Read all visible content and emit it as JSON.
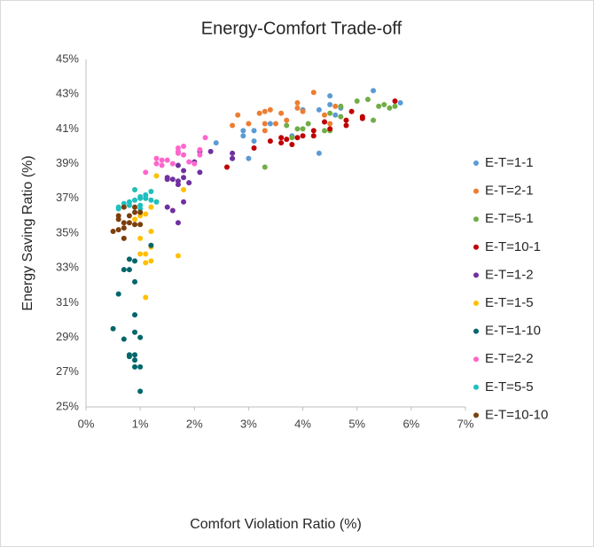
{
  "chart_data": {
    "type": "scatter",
    "title": "Energy-Comfort Trade-off",
    "x_label": "Comfort Violation Ratio (%)",
    "y_label": "Energy Saving Ratio (%)",
    "xlim": [
      0,
      7
    ],
    "xticks": [
      {
        "value": 0,
        "label": "0%"
      },
      {
        "value": 1,
        "label": "1%"
      },
      {
        "value": 2,
        "label": "2%"
      },
      {
        "value": 3,
        "label": "3%"
      },
      {
        "value": 4,
        "label": "4%"
      },
      {
        "value": 5,
        "label": "5%"
      },
      {
        "value": 6,
        "label": "6%"
      },
      {
        "value": 7,
        "label": "7%"
      }
    ],
    "ylim": [
      25,
      45
    ],
    "yticks": [
      {
        "value": 25,
        "label": "25%"
      },
      {
        "value": 27,
        "label": "27%"
      },
      {
        "value": 29,
        "label": "29%"
      },
      {
        "value": 31,
        "label": "31%"
      },
      {
        "value": 33,
        "label": "33%"
      },
      {
        "value": 35,
        "label": "35%"
      },
      {
        "value": 37,
        "label": "37%"
      },
      {
        "value": 39,
        "label": "39%"
      },
      {
        "value": 41,
        "label": "41%"
      },
      {
        "value": 43,
        "label": "43%"
      },
      {
        "value": 45,
        "label": "45%"
      }
    ],
    "grid": false,
    "legend": "right",
    "series": [
      {
        "name": "E-T=1-1",
        "color": "#5b9bd5",
        "x": [
          4.5,
          5.3,
          5.8,
          4.3,
          4.0,
          4.4,
          3.1,
          2.9,
          2.4,
          2.7,
          3.0,
          4.3,
          4.6,
          3.4,
          3.8,
          3.1,
          4.5,
          4.7,
          2.9
        ],
        "values": [
          42.9,
          43.2,
          42.5,
          42.1,
          42.1,
          41.4,
          40.9,
          40.9,
          40.2,
          39.3,
          39.3,
          39.6,
          41.8,
          41.3,
          40.6,
          40.3,
          42.4,
          42.2,
          40.6
        ]
      },
      {
        "name": "E-T=2-1",
        "color": "#ed7d31",
        "x": [
          4.2,
          3.9,
          3.3,
          3.4,
          2.8,
          2.7,
          3.0,
          3.3,
          3.6,
          3.3,
          3.5,
          4.0,
          4.4,
          4.6,
          3.9,
          3.2,
          3.7,
          4.5
        ],
        "values": [
          43.1,
          42.5,
          42.0,
          42.1,
          41.8,
          41.2,
          41.3,
          41.3,
          41.9,
          40.9,
          41.3,
          42.0,
          41.8,
          42.3,
          42.2,
          41.9,
          41.5,
          41.3
        ]
      },
      {
        "name": "E-T=5-1",
        "color": "#70ad47",
        "x": [
          5.2,
          5.4,
          5.7,
          5.6,
          5.0,
          4.7,
          4.5,
          4.1,
          3.9,
          3.8,
          4.4,
          4.5,
          5.3,
          3.3,
          4.0,
          3.7,
          4.7,
          5.5
        ],
        "values": [
          42.7,
          42.3,
          42.3,
          42.2,
          42.6,
          42.3,
          41.9,
          41.3,
          41.0,
          40.5,
          40.9,
          40.9,
          41.5,
          38.8,
          41.0,
          41.2,
          41.7,
          42.4
        ]
      },
      {
        "name": "E-T=10-1",
        "color": "#c00000",
        "x": [
          5.7,
          4.9,
          4.8,
          5.1,
          4.4,
          4.2,
          4.2,
          3.9,
          3.7,
          3.6,
          3.8,
          3.6,
          4.0,
          3.1,
          2.6,
          4.5,
          3.4,
          4.8,
          5.1
        ],
        "values": [
          42.6,
          42.0,
          41.5,
          41.7,
          41.4,
          40.9,
          40.6,
          40.5,
          40.4,
          40.2,
          40.1,
          40.5,
          40.6,
          39.9,
          38.8,
          41.0,
          40.3,
          41.2,
          41.6
        ]
      },
      {
        "name": "E-T=1-2",
        "color": "#7030a0",
        "x": [
          2.1,
          2.3,
          2.0,
          1.7,
          1.8,
          1.5,
          1.7,
          1.6,
          1.8,
          2.1,
          2.7,
          2.7,
          1.7,
          1.5,
          1.6,
          1.8,
          1.7,
          1.5,
          1.9
        ],
        "values": [
          39.7,
          39.7,
          39.1,
          38.9,
          38.6,
          38.2,
          38.0,
          38.1,
          38.2,
          38.5,
          39.6,
          39.3,
          37.8,
          36.5,
          36.3,
          36.8,
          35.6,
          38.1,
          37.9
        ]
      },
      {
        "name": "E-T=1-5",
        "color": "#ffc000",
        "x": [
          1.3,
          0.9,
          1.8,
          1.1,
          1.2,
          1.0,
          1.1,
          0.9,
          1.2,
          1.0,
          1.2,
          1.1,
          1.0,
          1.2,
          1.1,
          1.7,
          1.1,
          1.3,
          1.0
        ],
        "values": [
          38.3,
          37.5,
          37.5,
          37.0,
          36.5,
          36.2,
          36.1,
          35.8,
          35.1,
          34.7,
          34.2,
          33.8,
          33.8,
          33.4,
          33.3,
          33.7,
          31.3,
          36.8,
          36.0
        ]
      },
      {
        "name": "E-T=1-10",
        "color": "#00666b",
        "x": [
          1.2,
          0.8,
          0.9,
          0.7,
          0.8,
          0.9,
          0.6,
          0.9,
          0.5,
          0.7,
          0.9,
          1.0,
          0.8,
          0.8,
          0.9,
          0.9,
          1.0,
          1.0,
          0.9
        ],
        "values": [
          34.3,
          33.5,
          33.4,
          32.9,
          32.9,
          32.2,
          31.5,
          30.3,
          29.5,
          28.9,
          29.3,
          29.0,
          28.0,
          27.9,
          27.7,
          27.3,
          27.3,
          25.9,
          28.0
        ]
      },
      {
        "name": "E-T=2-2",
        "color": "#ff66cc",
        "x": [
          2.2,
          1.8,
          1.7,
          1.7,
          1.8,
          2.0,
          1.9,
          2.1,
          1.4,
          1.5,
          1.3,
          1.3,
          1.4,
          1.6,
          1.1,
          1.7,
          2.1
        ],
        "values": [
          40.5,
          40.0,
          39.9,
          39.6,
          39.5,
          39.0,
          39.1,
          39.8,
          39.2,
          39.2,
          39.3,
          39.0,
          38.9,
          39.0,
          38.5,
          39.7,
          39.5
        ]
      },
      {
        "name": "E-T=5-5",
        "color": "#1fbfbf",
        "x": [
          0.9,
          0.8,
          0.7,
          0.6,
          1.0,
          1.1,
          1.2,
          1.2,
          1.0,
          0.9,
          1.0,
          0.8,
          1.3,
          1.1,
          0.6,
          1.0
        ],
        "values": [
          37.5,
          36.8,
          36.7,
          36.5,
          37.1,
          37.2,
          37.4,
          36.9,
          36.6,
          36.9,
          36.4,
          36.6,
          36.8,
          37.0,
          36.4,
          37.0
        ]
      },
      {
        "name": "E-T=10-10",
        "color": "#7b3f0c",
        "x": [
          0.7,
          0.6,
          0.9,
          0.6,
          0.7,
          0.8,
          0.9,
          0.6,
          0.5,
          0.7,
          0.7,
          0.9,
          1.0,
          1.0,
          0.8
        ],
        "values": [
          36.5,
          36.0,
          36.2,
          35.8,
          35.6,
          35.6,
          35.5,
          35.2,
          35.1,
          35.3,
          34.7,
          36.5,
          35.5,
          36.2,
          36.0
        ]
      }
    ]
  }
}
